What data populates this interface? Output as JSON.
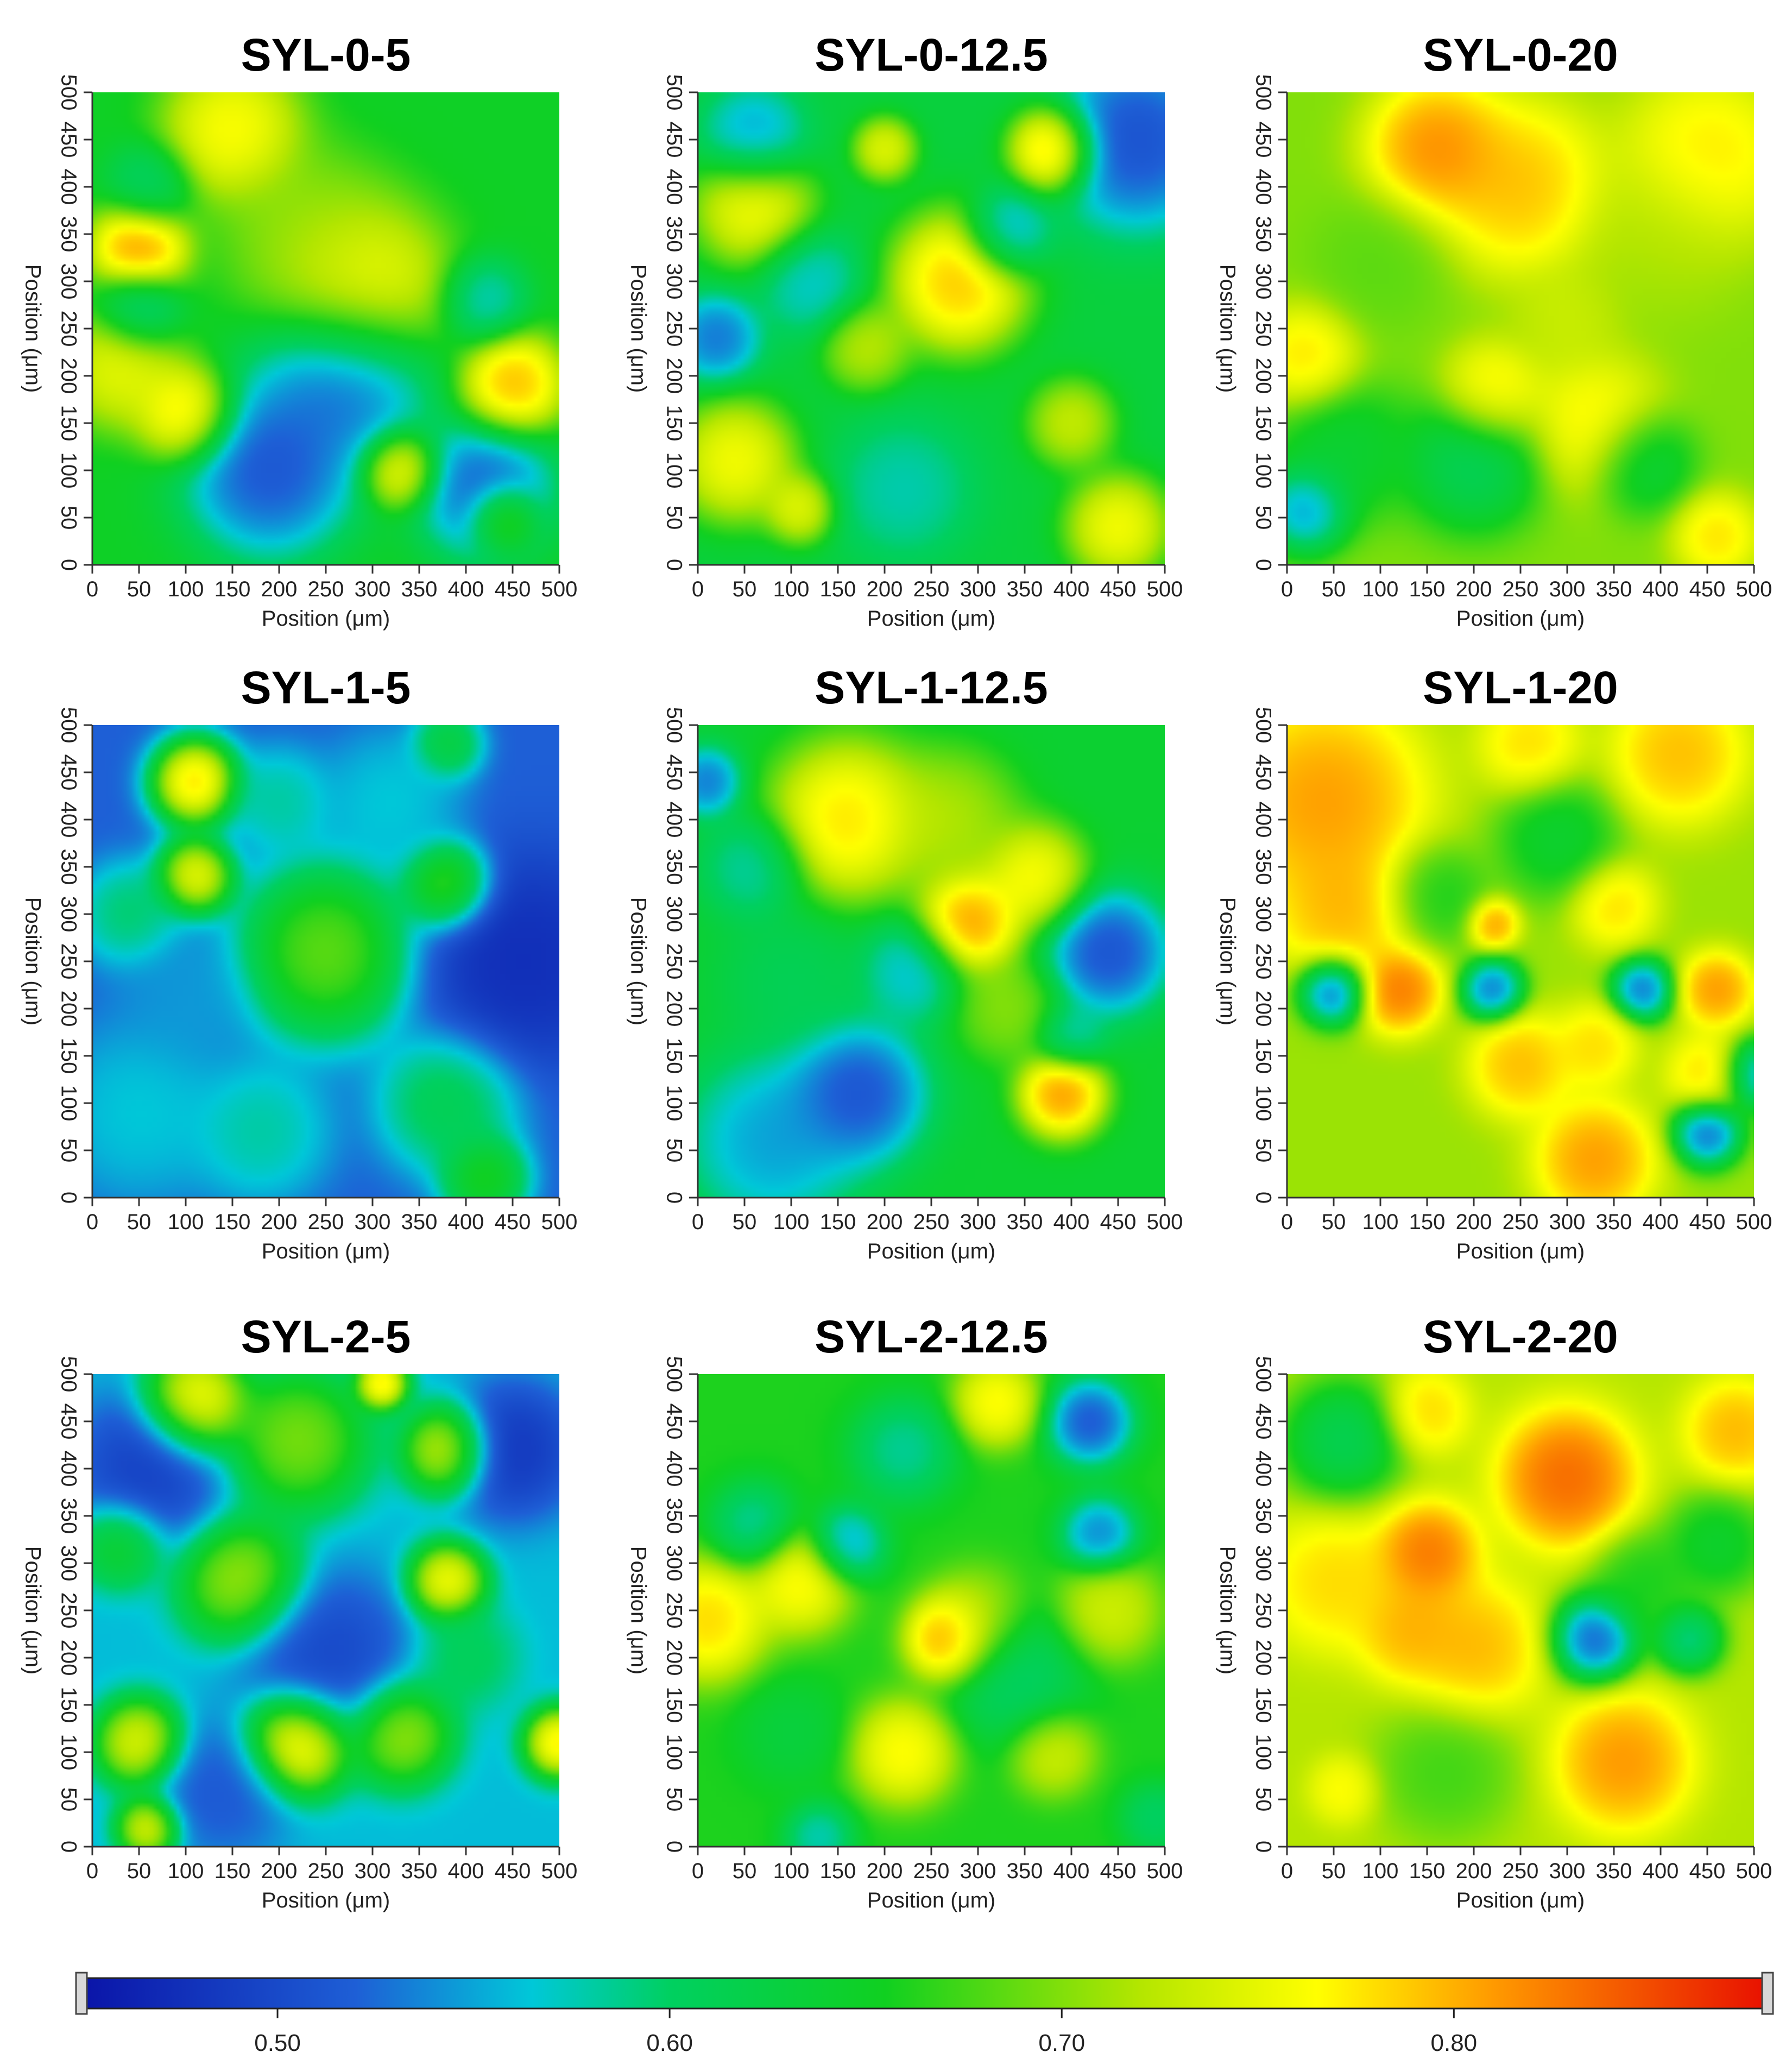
{
  "chart_data": [
    {
      "type": "heatmap",
      "title": "SYL-0-5",
      "xlabel": "Position (μm)",
      "ylabel": "Position (μm)",
      "xlim": [
        0,
        500
      ],
      "ylim": [
        0,
        500
      ],
      "ticks": [
        "0",
        "50",
        "100",
        "150",
        "200",
        "250",
        "300",
        "350",
        "400",
        "450",
        "500"
      ],
      "mean": 0.65,
      "blobs": [
        [
          150,
          460,
          0.8,
          40
        ],
        [
          50,
          335,
          0.86,
          28
        ],
        [
          290,
          290,
          0.8,
          50
        ],
        [
          50,
          270,
          0.55,
          25
        ],
        [
          30,
          210,
          0.78,
          35
        ],
        [
          100,
          160,
          0.82,
          28
        ],
        [
          190,
          100,
          0.47,
          50
        ],
        [
          270,
          200,
          0.48,
          50
        ],
        [
          330,
          100,
          0.8,
          22
        ],
        [
          420,
          80,
          0.48,
          40
        ],
        [
          450,
          190,
          0.84,
          30
        ],
        [
          440,
          50,
          0.75,
          20
        ],
        [
          420,
          280,
          0.55,
          25
        ],
        [
          230,
          350,
          0.72,
          50
        ],
        [
          60,
          400,
          0.58,
          25
        ]
      ]
    },
    {
      "type": "heatmap",
      "title": "SYL-0-12.5",
      "xlabel": "Position (μm)",
      "ylabel": "Position (μm)",
      "xlim": [
        0,
        500
      ],
      "ylim": [
        0,
        500
      ],
      "ticks": [
        "0",
        "50",
        "100",
        "150",
        "200",
        "250",
        "300",
        "350",
        "400",
        "450",
        "500"
      ],
      "mean": 0.63,
      "blobs": [
        [
          380,
          440,
          0.86,
          25
        ],
        [
          470,
          450,
          0.47,
          50
        ],
        [
          60,
          380,
          0.8,
          35
        ],
        [
          280,
          300,
          0.84,
          40
        ],
        [
          40,
          110,
          0.8,
          35
        ],
        [
          110,
          60,
          0.78,
          20
        ],
        [
          400,
          150,
          0.76,
          25
        ],
        [
          450,
          40,
          0.8,
          30
        ],
        [
          20,
          240,
          0.5,
          25
        ],
        [
          60,
          450,
          0.52,
          30
        ],
        [
          120,
          300,
          0.55,
          30
        ],
        [
          220,
          80,
          0.56,
          40
        ],
        [
          180,
          230,
          0.75,
          25
        ],
        [
          330,
          350,
          0.52,
          25
        ],
        [
          200,
          440,
          0.78,
          18
        ]
      ]
    },
    {
      "type": "heatmap",
      "title": "SYL-0-20",
      "xlabel": "Position (μm)",
      "ylabel": "Position (μm)",
      "xlim": [
        0,
        500
      ],
      "ylim": [
        0,
        500
      ],
      "ticks": [
        "0",
        "50",
        "100",
        "150",
        "200",
        "250",
        "300",
        "350",
        "400",
        "450",
        "500"
      ],
      "mean": 0.7,
      "blobs": [
        [
          160,
          440,
          0.85,
          40
        ],
        [
          250,
          400,
          0.82,
          50
        ],
        [
          450,
          430,
          0.8,
          50
        ],
        [
          20,
          220,
          0.8,
          30
        ],
        [
          220,
          180,
          0.8,
          30
        ],
        [
          330,
          150,
          0.79,
          40
        ],
        [
          20,
          60,
          0.5,
          25
        ],
        [
          200,
          110,
          0.58,
          40
        ],
        [
          380,
          110,
          0.6,
          30
        ],
        [
          60,
          120,
          0.62,
          40
        ],
        [
          460,
          30,
          0.8,
          25
        ],
        [
          400,
          350,
          0.72,
          50
        ],
        [
          300,
          260,
          0.74,
          30
        ],
        [
          100,
          320,
          0.68,
          40
        ]
      ]
    },
    {
      "type": "heatmap",
      "title": "SYL-1-5",
      "xlabel": "Position (μm)",
      "ylabel": "Position (μm)",
      "xlim": [
        0,
        500
      ],
      "ylim": [
        0,
        500
      ],
      "ticks": [
        "0",
        "50",
        "100",
        "150",
        "200",
        "250",
        "300",
        "350",
        "400",
        "450",
        "500"
      ],
      "mean": 0.52,
      "blobs": [
        [
          110,
          440,
          0.86,
          25
        ],
        [
          110,
          340,
          0.82,
          22
        ],
        [
          250,
          260,
          0.74,
          50
        ],
        [
          380,
          330,
          0.74,
          25
        ],
        [
          460,
          250,
          0.46,
          60
        ],
        [
          200,
          420,
          0.6,
          30
        ],
        [
          320,
          420,
          0.58,
          40
        ],
        [
          100,
          210,
          0.55,
          40
        ],
        [
          50,
          90,
          0.58,
          50
        ],
        [
          180,
          70,
          0.6,
          40
        ],
        [
          380,
          100,
          0.64,
          40
        ],
        [
          420,
          20,
          0.7,
          25
        ],
        [
          40,
          300,
          0.62,
          30
        ],
        [
          380,
          480,
          0.66,
          20
        ]
      ]
    },
    {
      "type": "heatmap",
      "title": "SYL-1-12.5",
      "xlabel": "Position (μm)",
      "ylabel": "Position (μm)",
      "xlim": [
        0,
        500
      ],
      "ylim": [
        0,
        500
      ],
      "ticks": [
        "0",
        "50",
        "100",
        "150",
        "200",
        "250",
        "300",
        "350",
        "400",
        "450",
        "500"
      ],
      "mean": 0.64,
      "blobs": [
        [
          160,
          400,
          0.82,
          45
        ],
        [
          290,
          290,
          0.86,
          30
        ],
        [
          390,
          110,
          0.86,
          25
        ],
        [
          360,
          340,
          0.8,
          30
        ],
        [
          440,
          260,
          0.47,
          35
        ],
        [
          170,
          110,
          0.47,
          40
        ],
        [
          80,
          60,
          0.52,
          50
        ],
        [
          60,
          350,
          0.56,
          30
        ],
        [
          10,
          440,
          0.5,
          20
        ],
        [
          230,
          240,
          0.54,
          30
        ],
        [
          400,
          170,
          0.56,
          20
        ],
        [
          270,
          400,
          0.74,
          40
        ],
        [
          330,
          200,
          0.72,
          30
        ],
        [
          100,
          230,
          0.6,
          40
        ]
      ]
    },
    {
      "type": "heatmap",
      "title": "SYL-1-20",
      "xlabel": "Position (μm)",
      "ylabel": "Position (μm)",
      "xlim": [
        0,
        500
      ],
      "ylim": [
        0,
        500
      ],
      "ticks": [
        "0",
        "50",
        "100",
        "150",
        "200",
        "250",
        "300",
        "350",
        "400",
        "450",
        "500"
      ],
      "mean": 0.71,
      "blobs": [
        [
          40,
          420,
          0.84,
          60
        ],
        [
          60,
          300,
          0.82,
          40
        ],
        [
          420,
          470,
          0.82,
          40
        ],
        [
          260,
          480,
          0.8,
          30
        ],
        [
          50,
          220,
          0.46,
          20
        ],
        [
          220,
          220,
          0.48,
          18
        ],
        [
          380,
          220,
          0.48,
          18
        ],
        [
          450,
          70,
          0.47,
          20
        ],
        [
          120,
          220,
          0.86,
          25
        ],
        [
          460,
          220,
          0.84,
          22
        ],
        [
          250,
          140,
          0.82,
          30
        ],
        [
          330,
          40,
          0.84,
          35
        ],
        [
          450,
          130,
          0.8,
          25
        ],
        [
          350,
          310,
          0.8,
          25
        ],
        [
          220,
          290,
          0.84,
          15
        ],
        [
          330,
          160,
          0.8,
          25
        ],
        [
          500,
          130,
          0.5,
          20
        ],
        [
          160,
          320,
          0.64,
          30
        ],
        [
          290,
          380,
          0.62,
          35
        ]
      ]
    },
    {
      "type": "heatmap",
      "title": "SYL-2-5",
      "xlabel": "Position (μm)",
      "ylabel": "Position (μm)",
      "xlim": [
        0,
        500
      ],
      "ylim": [
        0,
        500
      ],
      "ticks": [
        "0",
        "50",
        "100",
        "150",
        "200",
        "250",
        "300",
        "350",
        "400",
        "450",
        "500"
      ],
      "mean": 0.56,
      "blobs": [
        [
          110,
          470,
          0.84,
          30
        ],
        [
          220,
          430,
          0.74,
          40
        ],
        [
          380,
          420,
          0.8,
          25
        ],
        [
          310,
          490,
          0.84,
          15
        ],
        [
          220,
          110,
          0.86,
          30
        ],
        [
          50,
          110,
          0.8,
          25
        ],
        [
          380,
          280,
          0.82,
          22
        ],
        [
          500,
          110,
          0.84,
          20
        ],
        [
          160,
          280,
          0.76,
          35
        ],
        [
          330,
          120,
          0.76,
          30
        ],
        [
          60,
          400,
          0.47,
          45
        ],
        [
          450,
          420,
          0.46,
          40
        ],
        [
          250,
          200,
          0.48,
          50
        ],
        [
          140,
          60,
          0.5,
          40
        ],
        [
          60,
          20,
          0.8,
          18
        ],
        [
          30,
          320,
          0.68,
          25
        ],
        [
          400,
          200,
          0.62,
          30
        ]
      ]
    },
    {
      "type": "heatmap",
      "title": "SYL-2-12.5",
      "xlabel": "Position (μm)",
      "ylabel": "Position (μm)",
      "xlim": [
        0,
        500
      ],
      "ylim": [
        0,
        500
      ],
      "ticks": [
        "0",
        "50",
        "100",
        "150",
        "200",
        "250",
        "300",
        "350",
        "400",
        "450",
        "500"
      ],
      "mean": 0.66,
      "blobs": [
        [
          270,
          220,
          0.87,
          25
        ],
        [
          10,
          240,
          0.82,
          35
        ],
        [
          110,
          280,
          0.8,
          30
        ],
        [
          320,
          470,
          0.8,
          25
        ],
        [
          420,
          450,
          0.47,
          25
        ],
        [
          160,
          320,
          0.52,
          22
        ],
        [
          60,
          340,
          0.56,
          25
        ],
        [
          430,
          330,
          0.5,
          22
        ],
        [
          220,
          420,
          0.56,
          30
        ],
        [
          340,
          180,
          0.58,
          40
        ],
        [
          220,
          100,
          0.8,
          30
        ],
        [
          380,
          100,
          0.76,
          25
        ],
        [
          300,
          240,
          0.74,
          30
        ],
        [
          440,
          250,
          0.76,
          30
        ],
        [
          130,
          10,
          0.55,
          20
        ],
        [
          100,
          120,
          0.62,
          30
        ],
        [
          490,
          30,
          0.58,
          20
        ]
      ]
    },
    {
      "type": "heatmap",
      "title": "SYL-2-20",
      "xlabel": "Position (μm)",
      "ylabel": "Position (μm)",
      "xlim": [
        0,
        500
      ],
      "ylim": [
        0,
        500
      ],
      "ticks": [
        "0",
        "50",
        "100",
        "150",
        "200",
        "250",
        "300",
        "350",
        "400",
        "450",
        "500"
      ],
      "mean": 0.72,
      "blobs": [
        [
          300,
          390,
          0.87,
          40
        ],
        [
          150,
          310,
          0.86,
          30
        ],
        [
          50,
          280,
          0.8,
          40
        ],
        [
          200,
          210,
          0.82,
          40
        ],
        [
          130,
          230,
          0.82,
          30
        ],
        [
          360,
          90,
          0.84,
          40
        ],
        [
          480,
          440,
          0.82,
          30
        ],
        [
          150,
          460,
          0.8,
          25
        ],
        [
          330,
          220,
          0.46,
          25
        ],
        [
          430,
          220,
          0.55,
          20
        ],
        [
          60,
          430,
          0.58,
          35
        ],
        [
          170,
          80,
          0.66,
          40
        ],
        [
          380,
          280,
          0.64,
          30
        ],
        [
          460,
          320,
          0.62,
          30
        ],
        [
          60,
          60,
          0.78,
          20
        ]
      ]
    }
  ],
  "colorbar": {
    "labels": [
      "0.50",
      "0.60",
      "0.70",
      "0.80"
    ],
    "values": [
      0.5,
      0.6,
      0.7,
      0.8
    ],
    "range": [
      0.45,
      0.88
    ],
    "stops": [
      [
        0.45,
        "#0a14a8"
      ],
      [
        0.52,
        "#1e5fd6"
      ],
      [
        0.565,
        "#00c8d8"
      ],
      [
        0.6,
        "#00d060"
      ],
      [
        0.655,
        "#10d020"
      ],
      [
        0.72,
        "#b4e600"
      ],
      [
        0.765,
        "#ffff00"
      ],
      [
        0.81,
        "#ff9a00"
      ],
      [
        0.88,
        "#e81000"
      ]
    ]
  }
}
